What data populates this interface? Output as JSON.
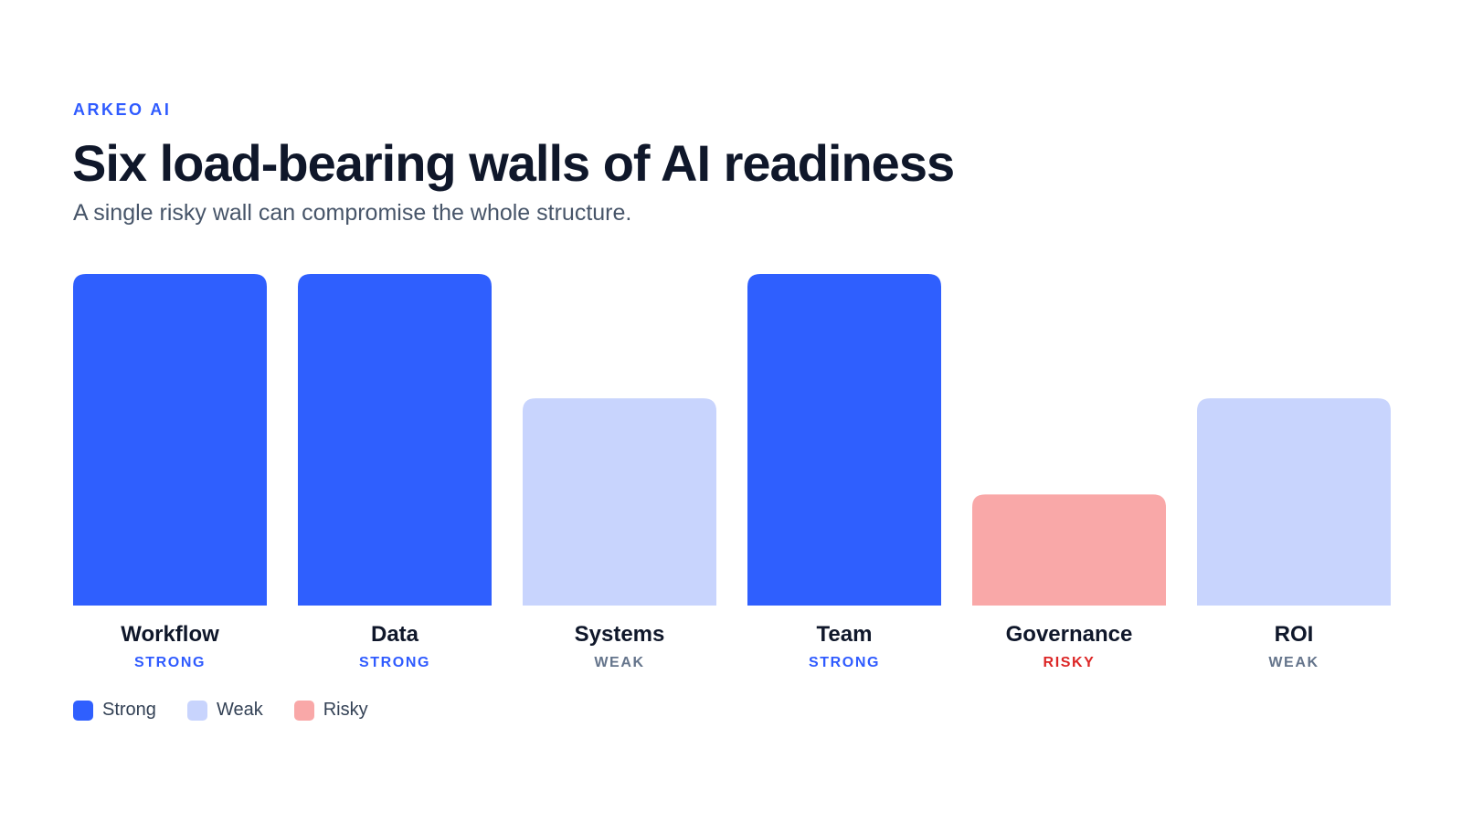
{
  "brand": "ARKEO AI",
  "title": "Six load-bearing walls of AI readiness",
  "subtitle": "A single risky wall can compromise the whole structure.",
  "colors": {
    "strong_bar": "#2f5ffe",
    "weak_bar": "#c8d4fd",
    "risky_bar": "#f9a8a8",
    "strong_text": "#2f5bff",
    "weak_text": "#64748b",
    "risky_text": "#dc2626"
  },
  "legend": [
    {
      "label": "Strong",
      "color": "#2f5ffe"
    },
    {
      "label": "Weak",
      "color": "#c8d4fd"
    },
    {
      "label": "Risky",
      "color": "#f9a8a8"
    }
  ],
  "chart_data": {
    "type": "bar",
    "categories": [
      "Workflow",
      "Data",
      "Systems",
      "Team",
      "Governance",
      "ROI"
    ],
    "statuses": [
      "STRONG",
      "STRONG",
      "WEAK",
      "STRONG",
      "RISKY",
      "WEAK"
    ],
    "status_keys": [
      "strong",
      "strong",
      "weak",
      "strong",
      "risky",
      "weak"
    ],
    "values": [
      100,
      100,
      62.5,
      100,
      33.5,
      62.5
    ],
    "ylim": [
      0,
      100
    ],
    "grid": false,
    "legend_position": "bottom-left"
  }
}
